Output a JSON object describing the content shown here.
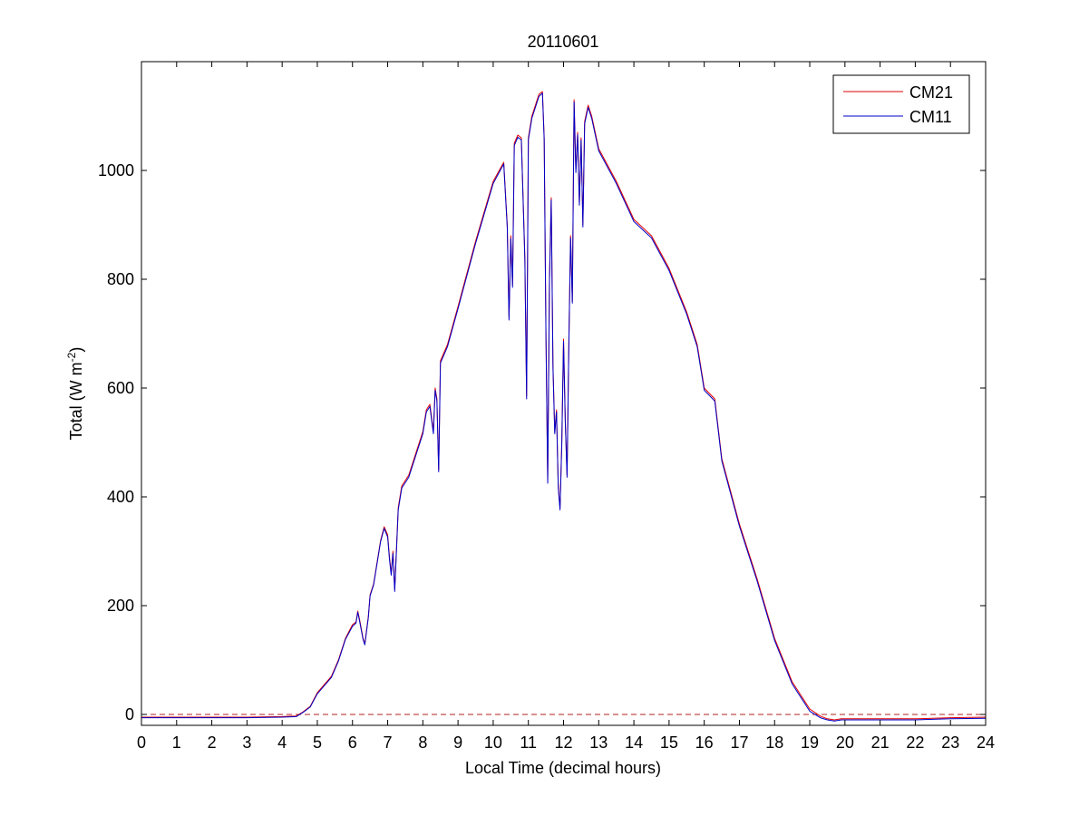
{
  "chart_data": {
    "type": "line",
    "title": "20110601",
    "xlabel": "Local Time (decimal hours)",
    "ylabel_main": "Total (W m",
    "ylabel_sup": "-2",
    "ylabel_close": ")",
    "xlim": [
      0,
      24
    ],
    "ylim": [
      -20,
      1200
    ],
    "xticks": [
      "0",
      "1",
      "2",
      "3",
      "4",
      "5",
      "6",
      "7",
      "8",
      "9",
      "10",
      "11",
      "12",
      "13",
      "14",
      "15",
      "16",
      "17",
      "18",
      "19",
      "20",
      "21",
      "22",
      "23",
      "24"
    ],
    "yticks": [
      "0",
      "200",
      "400",
      "600",
      "800",
      "1000"
    ],
    "ytick_values": [
      0,
      200,
      400,
      600,
      800,
      1000
    ],
    "grid": false,
    "legend_position": "top-right",
    "zero_reference": {
      "y": 0,
      "style": "dashed",
      "color": "#b02020"
    },
    "series": [
      {
        "name": "CM21",
        "color": "#e00000",
        "x": [
          0,
          1,
          2,
          3,
          4,
          4.4,
          4.6,
          4.8,
          5.0,
          5.2,
          5.4,
          5.6,
          5.8,
          6.0,
          6.1,
          6.15,
          6.2,
          6.3,
          6.35,
          6.45,
          6.5,
          6.6,
          6.7,
          6.8,
          6.9,
          7.0,
          7.05,
          7.1,
          7.15,
          7.2,
          7.3,
          7.4,
          7.6,
          7.8,
          8.0,
          8.1,
          8.2,
          8.3,
          8.35,
          8.4,
          8.45,
          8.5,
          8.7,
          9.0,
          9.5,
          10.0,
          10.3,
          10.4,
          10.45,
          10.5,
          10.55,
          10.6,
          10.7,
          10.8,
          10.9,
          10.95,
          11.0,
          11.05,
          11.1,
          11.2,
          11.3,
          11.4,
          11.45,
          11.5,
          11.55,
          11.6,
          11.65,
          11.7,
          11.75,
          11.8,
          11.85,
          11.9,
          11.95,
          12.0,
          12.05,
          12.1,
          12.15,
          12.2,
          12.25,
          12.3,
          12.35,
          12.4,
          12.45,
          12.5,
          12.55,
          12.6,
          12.7,
          12.8,
          13.0,
          13.5,
          14.0,
          14.5,
          15.0,
          15.5,
          15.8,
          15.9,
          16.0,
          16.3,
          16.5,
          17.0,
          17.5,
          18.0,
          18.5,
          19.0,
          19.3,
          19.5,
          19.7,
          19.9,
          20.0,
          21.0,
          22.0,
          23.0,
          24.0
        ],
        "y": [
          -5,
          -5,
          -5,
          -5,
          -4,
          -3,
          5,
          15,
          40,
          55,
          70,
          100,
          140,
          165,
          170,
          190,
          175,
          140,
          130,
          180,
          220,
          240,
          280,
          320,
          345,
          330,
          290,
          260,
          300,
          230,
          380,
          420,
          440,
          480,
          520,
          560,
          570,
          520,
          600,
          580,
          450,
          650,
          680,
          750,
          870,
          980,
          1015,
          900,
          730,
          880,
          790,
          1050,
          1065,
          1060,
          840,
          585,
          1060,
          1080,
          1100,
          1120,
          1140,
          1145,
          1060,
          700,
          430,
          800,
          950,
          640,
          520,
          560,
          420,
          380,
          500,
          690,
          540,
          440,
          680,
          880,
          760,
          1130,
          1000,
          1070,
          940,
          1060,
          900,
          1090,
          1120,
          1100,
          1040,
          980,
          910,
          880,
          820,
          740,
          680,
          640,
          600,
          580,
          470,
          350,
          250,
          140,
          60,
          10,
          -3,
          -8,
          -10,
          -8,
          -8,
          -8,
          -8,
          -6,
          -5
        ]
      },
      {
        "name": "CM11",
        "color": "#0000c8",
        "x": [
          0,
          1,
          2,
          3,
          4,
          4.4,
          4.6,
          4.8,
          5.0,
          5.2,
          5.4,
          5.6,
          5.8,
          6.0,
          6.1,
          6.15,
          6.2,
          6.3,
          6.35,
          6.45,
          6.5,
          6.6,
          6.7,
          6.8,
          6.9,
          7.0,
          7.05,
          7.1,
          7.15,
          7.2,
          7.3,
          7.4,
          7.6,
          7.8,
          8.0,
          8.1,
          8.2,
          8.3,
          8.35,
          8.4,
          8.45,
          8.5,
          8.7,
          9.0,
          9.5,
          10.0,
          10.3,
          10.4,
          10.45,
          10.5,
          10.55,
          10.6,
          10.7,
          10.8,
          10.9,
          10.95,
          11.0,
          11.05,
          11.1,
          11.2,
          11.3,
          11.4,
          11.45,
          11.5,
          11.55,
          11.6,
          11.65,
          11.7,
          11.75,
          11.8,
          11.85,
          11.9,
          11.95,
          12.0,
          12.05,
          12.1,
          12.15,
          12.2,
          12.25,
          12.3,
          12.35,
          12.4,
          12.45,
          12.5,
          12.55,
          12.6,
          12.7,
          12.8,
          13.0,
          13.5,
          14.0,
          14.5,
          15.0,
          15.5,
          15.8,
          15.9,
          16.0,
          16.3,
          16.5,
          17.0,
          17.5,
          18.0,
          18.5,
          19.0,
          19.3,
          19.5,
          19.7,
          19.9,
          20.0,
          21.0,
          22.0,
          23.0,
          24.0
        ],
        "y": [
          -6,
          -6,
          -6,
          -6,
          -5,
          -4,
          4,
          14,
          38,
          53,
          68,
          98,
          138,
          162,
          168,
          188,
          172,
          138,
          128,
          178,
          218,
          238,
          278,
          318,
          342,
          326,
          286,
          256,
          296,
          226,
          376,
          416,
          436,
          476,
          516,
          556,
          566,
          516,
          596,
          576,
          446,
          646,
          676,
          746,
          866,
          976,
          1012,
          895,
          725,
          875,
          785,
          1046,
          1061,
          1056,
          836,
          580,
          1056,
          1076,
          1096,
          1116,
          1136,
          1142,
          1056,
          696,
          425,
          796,
          946,
          636,
          516,
          556,
          416,
          376,
          496,
          686,
          536,
          436,
          676,
          876,
          756,
          1126,
          996,
          1066,
          936,
          1056,
          896,
          1086,
          1116,
          1096,
          1036,
          976,
          906,
          876,
          816,
          736,
          676,
          636,
          596,
          576,
          466,
          346,
          246,
          136,
          56,
          6,
          -6,
          -10,
          -12,
          -10,
          -10,
          -10,
          -10,
          -8,
          -7
        ]
      }
    ]
  }
}
